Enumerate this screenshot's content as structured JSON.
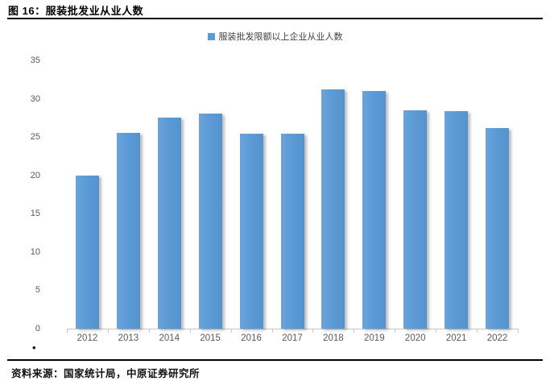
{
  "figure": {
    "title": "图 16：服装批发业从业人数",
    "bullet": "•",
    "source": "资料来源：国家统计局，中原证券研究所"
  },
  "legend": {
    "marker_color": "#5B9BD5",
    "label": "服装批发限额以上企业从业人数"
  },
  "chart_data": {
    "type": "bar",
    "title": "服装批发业从业人数",
    "series_name": "服装批发限额以上企业从业人数",
    "categories": [
      "2012",
      "2013",
      "2014",
      "2015",
      "2016",
      "2017",
      "2018",
      "2019",
      "2020",
      "2021",
      "2022"
    ],
    "values": [
      20.0,
      25.5,
      27.5,
      28.1,
      25.4,
      25.4,
      31.2,
      31.0,
      28.5,
      28.4,
      26.2
    ],
    "xlabel": "",
    "ylabel": "",
    "ylim": [
      0,
      35
    ],
    "yticks": [
      0,
      5,
      10,
      15,
      20,
      25,
      30,
      35
    ],
    "bar_color": "#5B9BD5",
    "axis_color": "#C6C6C6",
    "tick_label_color": "#595959",
    "legend_position": "top",
    "grid": false
  }
}
